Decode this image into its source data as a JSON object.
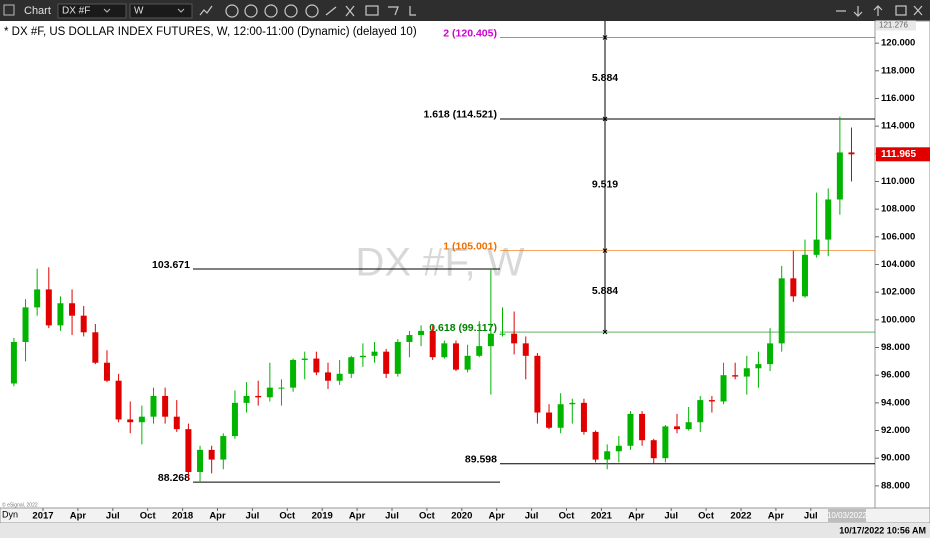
{
  "toolbar": {
    "title": "Chart",
    "symbol": "DX #F",
    "interval": "W"
  },
  "chart_data": {
    "type": "candlestick",
    "title": "* DX #F, US DOLLAR INDEX FUTURES, W, 12:00-11:00 (Dynamic) (delayed 10)",
    "watermark": "DX #F, W",
    "x": [
      "2016-10",
      "2016-11",
      "2016-12",
      "2017-01",
      "2017-02",
      "2017-03",
      "2017-04",
      "2017-05",
      "2017-06",
      "2017-07",
      "2017-08",
      "2017-09",
      "2017-10",
      "2017-11",
      "2017-12",
      "2018-01",
      "2018-02",
      "2018-03",
      "2018-04",
      "2018-05",
      "2018-06",
      "2018-07",
      "2018-08",
      "2018-09",
      "2018-10",
      "2018-11",
      "2018-12",
      "2019-01",
      "2019-02",
      "2019-03",
      "2019-04",
      "2019-05",
      "2019-06",
      "2019-07",
      "2019-08",
      "2019-09",
      "2019-10",
      "2019-11",
      "2019-12",
      "2020-01",
      "2020-02",
      "2020-03",
      "2020-04",
      "2020-05",
      "2020-06",
      "2020-07",
      "2020-08",
      "2020-09",
      "2020-10",
      "2020-11",
      "2020-12",
      "2021-01",
      "2021-02",
      "2021-03",
      "2021-04",
      "2021-05",
      "2021-06",
      "2021-07",
      "2021-08",
      "2021-09",
      "2021-10",
      "2021-11",
      "2021-12",
      "2022-01",
      "2022-02",
      "2022-03",
      "2022-04",
      "2022-05",
      "2022-06",
      "2022-07",
      "2022-08",
      "2022-09",
      "2022-10"
    ],
    "open": [
      95.4,
      98.4,
      100.9,
      102.2,
      99.6,
      101.2,
      100.3,
      99.1,
      96.9,
      95.6,
      92.8,
      92.6,
      93.0,
      94.5,
      93.0,
      92.1,
      89.0,
      90.6,
      89.9,
      91.6,
      94.0,
      94.5,
      94.4,
      95.1,
      95.1,
      97.1,
      97.2,
      96.2,
      95.6,
      96.1,
      97.3,
      97.4,
      97.7,
      96.1,
      98.4,
      98.9,
      99.2,
      97.3,
      98.3,
      96.4,
      97.4,
      98.1,
      99.0,
      99.0,
      98.3,
      97.4,
      93.3,
      92.2,
      93.9,
      94.0,
      91.9,
      89.9,
      90.5,
      90.9,
      93.2,
      91.3,
      90.0,
      92.3,
      92.1,
      92.6,
      94.2,
      94.1,
      96.0,
      95.9,
      96.5,
      96.8,
      98.3,
      103.0,
      101.7,
      104.7,
      105.8,
      108.7,
      112.1
    ],
    "high": [
      98.7,
      101.5,
      103.7,
      103.8,
      101.7,
      102.2,
      101.0,
      99.7,
      97.8,
      96.1,
      94.1,
      93.8,
      95.1,
      95.1,
      94.2,
      92.5,
      90.9,
      90.9,
      91.8,
      94.9,
      95.5,
      95.6,
      96.9,
      95.7,
      97.2,
      97.7,
      97.7,
      96.9,
      97.1,
      97.4,
      98.3,
      98.4,
      97.9,
      98.6,
      99.2,
      99.6,
      99.6,
      98.5,
      98.5,
      98.2,
      99.9,
      103.671,
      100.9,
      100.6,
      98.8,
      97.6,
      93.9,
      94.7,
      94.3,
      94.3,
      92.0,
      91.0,
      91.6,
      93.4,
      93.4,
      91.4,
      92.4,
      93.2,
      93.7,
      94.5,
      94.5,
      96.9,
      96.9,
      97.4,
      97.7,
      99.4,
      103.9,
      105.0,
      105.8,
      109.2,
      109.5,
      114.7,
      113.9
    ],
    "low": [
      95.2,
      97.0,
      100.3,
      99.4,
      99.2,
      98.9,
      98.8,
      96.8,
      95.5,
      92.6,
      91.8,
      91.0,
      92.5,
      92.5,
      91.9,
      88.5,
      88.268,
      88.9,
      89.2,
      91.4,
      93.3,
      93.8,
      94.1,
      93.8,
      94.8,
      95.7,
      96.0,
      95.0,
      95.3,
      95.8,
      96.6,
      96.9,
      95.8,
      95.9,
      97.3,
      98.1,
      97.1,
      97.2,
      96.3,
      96.2,
      97.3,
      94.6,
      98.8,
      97.5,
      95.7,
      92.5,
      92.1,
      91.8,
      92.5,
      91.7,
      89.7,
      89.2,
      89.7,
      90.6,
      90.9,
      89.598,
      89.7,
      91.8,
      92.0,
      91.9,
      93.3,
      93.9,
      95.7,
      94.6,
      95.1,
      96.3,
      97.7,
      101.3,
      101.6,
      104.5,
      104.6,
      107.6,
      110.0
    ],
    "close": [
      98.4,
      100.9,
      102.2,
      99.6,
      101.2,
      100.3,
      99.1,
      96.9,
      95.6,
      92.8,
      92.6,
      93.0,
      94.5,
      93.0,
      92.1,
      89.0,
      90.6,
      89.9,
      91.6,
      94.0,
      94.5,
      94.4,
      95.1,
      95.1,
      97.1,
      97.2,
      96.2,
      95.6,
      96.1,
      97.3,
      97.4,
      97.7,
      96.1,
      98.4,
      98.9,
      99.2,
      97.3,
      98.3,
      96.4,
      97.4,
      98.1,
      99.0,
      99.0,
      98.3,
      97.4,
      93.3,
      92.2,
      93.9,
      94.0,
      91.9,
      89.9,
      90.5,
      90.9,
      93.2,
      91.3,
      90.0,
      92.3,
      92.1,
      92.6,
      94.2,
      94.1,
      96.0,
      95.9,
      96.5,
      96.8,
      98.3,
      103.0,
      101.7,
      104.7,
      105.8,
      108.7,
      112.1,
      111.965
    ],
    "up_color": "#00b400",
    "down_color": "#e00000",
    "ylim": [
      86.4,
      121.6
    ],
    "yticks": [
      {
        "value": 88,
        "label": "88.000"
      },
      {
        "value": 90,
        "label": "90.000"
      },
      {
        "value": 92,
        "label": "92.000"
      },
      {
        "value": 94,
        "label": "94.000"
      },
      {
        "value": 96,
        "label": "96.000"
      },
      {
        "value": 98,
        "label": "98.000"
      },
      {
        "value": 100,
        "label": "100.000"
      },
      {
        "value": 102,
        "label": "102.000"
      },
      {
        "value": 104,
        "label": "104.000"
      },
      {
        "value": 106,
        "label": "106.000"
      },
      {
        "value": 108,
        "label": "108.000"
      },
      {
        "value": 110,
        "label": "110.000"
      },
      {
        "value": 112,
        "label": "112.000"
      },
      {
        "value": 114,
        "label": "114.000"
      },
      {
        "value": 116,
        "label": "116.000"
      },
      {
        "value": 118,
        "label": "118.000"
      },
      {
        "value": 120,
        "label": "120.000"
      }
    ],
    "xticks": [
      {
        "value": "2017-01",
        "label": "2017"
      },
      {
        "value": "2017-04",
        "label": "Apr"
      },
      {
        "value": "2017-07",
        "label": "Jul"
      },
      {
        "value": "2017-10",
        "label": "Oct"
      },
      {
        "value": "2018-01",
        "label": "2018"
      },
      {
        "value": "2018-04",
        "label": "Apr"
      },
      {
        "value": "2018-07",
        "label": "Jul"
      },
      {
        "value": "2018-10",
        "label": "Oct"
      },
      {
        "value": "2019-01",
        "label": "2019"
      },
      {
        "value": "2019-04",
        "label": "Apr"
      },
      {
        "value": "2019-07",
        "label": "Jul"
      },
      {
        "value": "2019-10",
        "label": "Oct"
      },
      {
        "value": "2020-01",
        "label": "2020"
      },
      {
        "value": "2020-04",
        "label": "Apr"
      },
      {
        "value": "2020-07",
        "label": "Jul"
      },
      {
        "value": "2020-10",
        "label": "Oct"
      },
      {
        "value": "2021-01",
        "label": "2021"
      },
      {
        "value": "2021-04",
        "label": "Apr"
      },
      {
        "value": "2021-07",
        "label": "Jul"
      },
      {
        "value": "2021-10",
        "label": "Oct"
      },
      {
        "value": "2022-01",
        "label": "2022"
      },
      {
        "value": "2022-04",
        "label": "Apr"
      },
      {
        "value": "2022-07",
        "label": "Jul"
      }
    ],
    "axis_prefix": "Dyn",
    "axis_top_value": 121.276,
    "annotations": [
      {
        "label": "103.671",
        "value": 103.671,
        "color": "#000000"
      },
      {
        "label": "88.268",
        "value": 88.268,
        "color": "#000000"
      },
      {
        "label": "89.598",
        "value": 89.598,
        "color": "#000000"
      },
      {
        "label": "1.618 (114.521)",
        "value": 114.521,
        "color": "#000000"
      },
      {
        "label": "2 (120.405)",
        "value": 120.405,
        "color": "#d000d0"
      },
      {
        "label": "1 (105.001)",
        "value": 105.001,
        "color": "#f07000"
      },
      {
        "label": "0.618 (99.117)",
        "value": 99.117,
        "color": "#008000"
      }
    ],
    "measure_labels": [
      "5.884",
      "9.519",
      "5.884"
    ],
    "date_box": "10/03/2022",
    "copyright": "© eSignal, 2022"
  },
  "status": {
    "datetime": "10/17/2022 10:56 AM"
  }
}
